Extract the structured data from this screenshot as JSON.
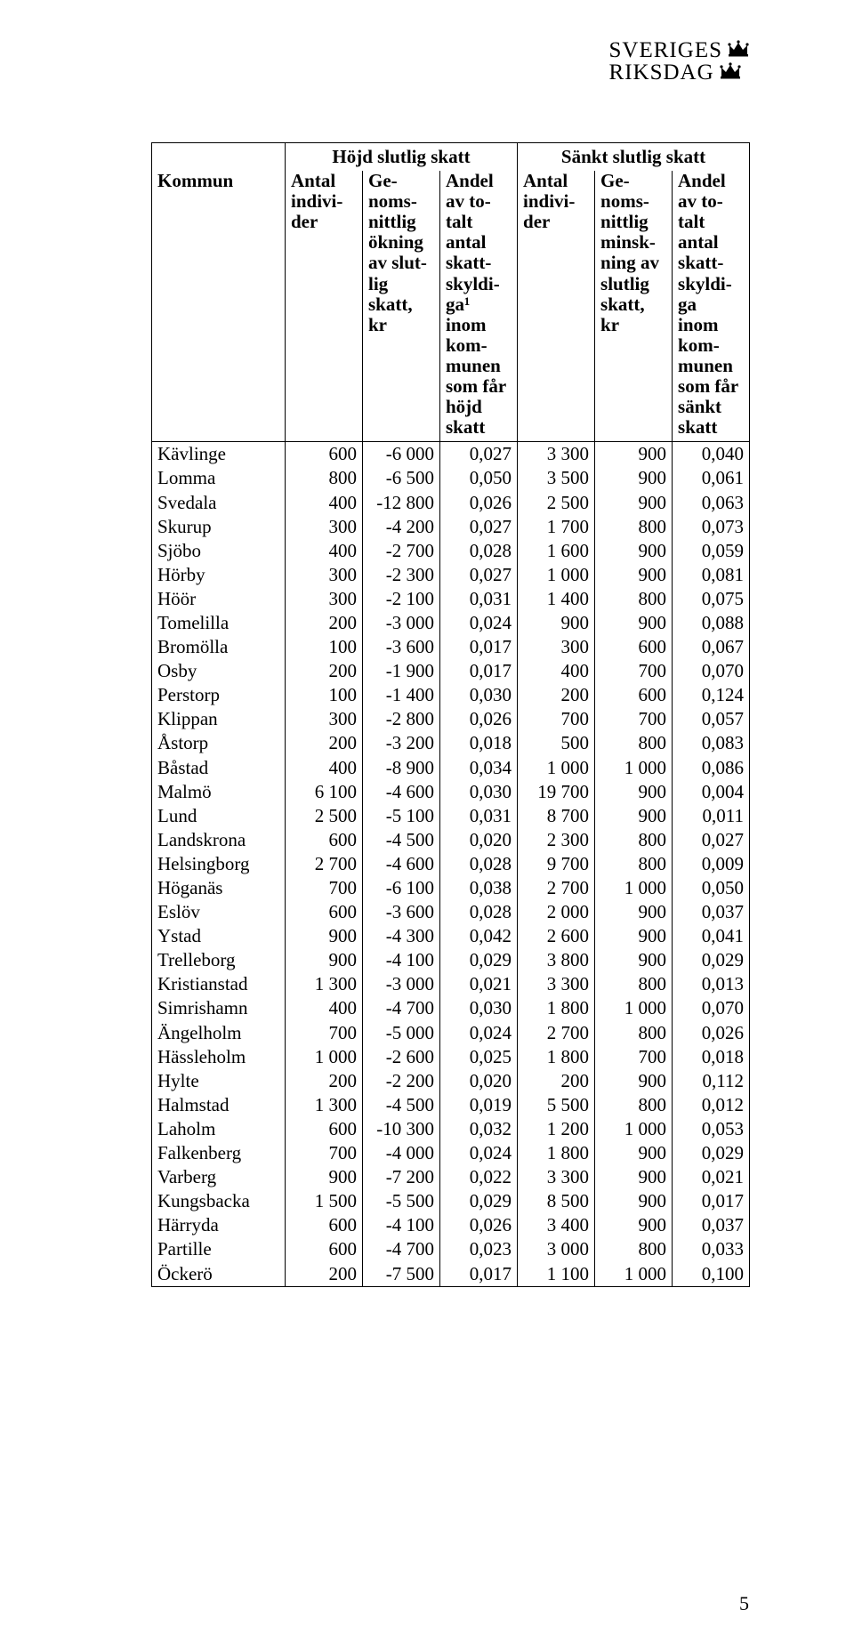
{
  "logo": {
    "line1": "SVERIGES",
    "line2": "RIKSDAG"
  },
  "page_number": "5",
  "table": {
    "group_headers": {
      "left_blank": "",
      "raised": "Höjd slutlig skatt",
      "lowered": "Sänkt slutlig skatt"
    },
    "col_headers": {
      "kommun": "Kommun",
      "hi_antal": "Antal\nindivi-\nder",
      "hi_okning": "Ge-\nnoms-\nnittlig\nökning\nav slut-\nlig\nskatt,\nkr",
      "hi_andel": "Andel\nav to-\ntalt\nantal\nskatt-\nskyldi-\nga¹\ninom\nkom-\nmunen\nsom får\nhöjd\nskatt",
      "lo_antal": "Antal\nindivi-\nder",
      "lo_minsk": "Ge-\nnoms-\nnittlig\nminsk-\nning av\nslutlig\nskatt,\nkr",
      "lo_andel": "Andel\nav to-\ntalt\nantal\nskatt-\nskyldi-\nga\ninom\nkom-\nmunen\nsom får\nsänkt\nskatt"
    },
    "rows": [
      {
        "k": "Kävlinge",
        "a": "600",
        "b": "-6 000",
        "c": "0,027",
        "d": "3 300",
        "e": "900",
        "f": "0,040"
      },
      {
        "k": "Lomma",
        "a": "800",
        "b": "-6 500",
        "c": "0,050",
        "d": "3 500",
        "e": "900",
        "f": "0,061"
      },
      {
        "k": "Svedala",
        "a": "400",
        "b": "-12 800",
        "c": "0,026",
        "d": "2 500",
        "e": "900",
        "f": "0,063"
      },
      {
        "k": "Skurup",
        "a": "300",
        "b": "-4 200",
        "c": "0,027",
        "d": "1 700",
        "e": "800",
        "f": "0,073"
      },
      {
        "k": "Sjöbo",
        "a": "400",
        "b": "-2 700",
        "c": "0,028",
        "d": "1 600",
        "e": "900",
        "f": "0,059"
      },
      {
        "k": "Hörby",
        "a": "300",
        "b": "-2 300",
        "c": "0,027",
        "d": "1 000",
        "e": "900",
        "f": "0,081"
      },
      {
        "k": "Höör",
        "a": "300",
        "b": "-2 100",
        "c": "0,031",
        "d": "1 400",
        "e": "800",
        "f": "0,075"
      },
      {
        "k": "Tomelilla",
        "a": "200",
        "b": "-3 000",
        "c": "0,024",
        "d": "900",
        "e": "900",
        "f": "0,088"
      },
      {
        "k": "Bromölla",
        "a": "100",
        "b": "-3 600",
        "c": "0,017",
        "d": "300",
        "e": "600",
        "f": "0,067"
      },
      {
        "k": "Osby",
        "a": "200",
        "b": "-1 900",
        "c": "0,017",
        "d": "400",
        "e": "700",
        "f": "0,070"
      },
      {
        "k": "Perstorp",
        "a": "100",
        "b": "-1 400",
        "c": "0,030",
        "d": "200",
        "e": "600",
        "f": "0,124"
      },
      {
        "k": "Klippan",
        "a": "300",
        "b": "-2 800",
        "c": "0,026",
        "d": "700",
        "e": "700",
        "f": "0,057"
      },
      {
        "k": "Åstorp",
        "a": "200",
        "b": "-3 200",
        "c": "0,018",
        "d": "500",
        "e": "800",
        "f": "0,083"
      },
      {
        "k": "Båstad",
        "a": "400",
        "b": "-8 900",
        "c": "0,034",
        "d": "1 000",
        "e": "1 000",
        "f": "0,086"
      },
      {
        "k": "Malmö",
        "a": "6 100",
        "b": "-4 600",
        "c": "0,030",
        "d": "19 700",
        "e": "900",
        "f": "0,004"
      },
      {
        "k": "Lund",
        "a": "2 500",
        "b": "-5 100",
        "c": "0,031",
        "d": "8 700",
        "e": "900",
        "f": "0,011"
      },
      {
        "k": "Landskrona",
        "a": "600",
        "b": "-4 500",
        "c": "0,020",
        "d": "2 300",
        "e": "800",
        "f": "0,027"
      },
      {
        "k": "Helsingborg",
        "a": "2 700",
        "b": "-4 600",
        "c": "0,028",
        "d": "9 700",
        "e": "800",
        "f": "0,009"
      },
      {
        "k": "Höganäs",
        "a": "700",
        "b": "-6 100",
        "c": "0,038",
        "d": "2 700",
        "e": "1 000",
        "f": "0,050"
      },
      {
        "k": "Eslöv",
        "a": "600",
        "b": "-3 600",
        "c": "0,028",
        "d": "2 000",
        "e": "900",
        "f": "0,037"
      },
      {
        "k": "Ystad",
        "a": "900",
        "b": "-4 300",
        "c": "0,042",
        "d": "2 600",
        "e": "900",
        "f": "0,041"
      },
      {
        "k": "Trelleborg",
        "a": "900",
        "b": "-4 100",
        "c": "0,029",
        "d": "3 800",
        "e": "900",
        "f": "0,029"
      },
      {
        "k": "Kristianstad",
        "a": "1 300",
        "b": "-3 000",
        "c": "0,021",
        "d": "3 300",
        "e": "800",
        "f": "0,013"
      },
      {
        "k": "Simrishamn",
        "a": "400",
        "b": "-4 700",
        "c": "0,030",
        "d": "1 800",
        "e": "1 000",
        "f": "0,070"
      },
      {
        "k": "Ängelholm",
        "a": "700",
        "b": "-5 000",
        "c": "0,024",
        "d": "2 700",
        "e": "800",
        "f": "0,026"
      },
      {
        "k": "Hässleholm",
        "a": "1 000",
        "b": "-2 600",
        "c": "0,025",
        "d": "1 800",
        "e": "700",
        "f": "0,018"
      },
      {
        "k": "Hylte",
        "a": "200",
        "b": "-2 200",
        "c": "0,020",
        "d": "200",
        "e": "900",
        "f": "0,112"
      },
      {
        "k": "Halmstad",
        "a": "1 300",
        "b": "-4 500",
        "c": "0,019",
        "d": "5 500",
        "e": "800",
        "f": "0,012"
      },
      {
        "k": "Laholm",
        "a": "600",
        "b": "-10 300",
        "c": "0,032",
        "d": "1 200",
        "e": "1 000",
        "f": "0,053"
      },
      {
        "k": "Falkenberg",
        "a": "700",
        "b": "-4 000",
        "c": "0,024",
        "d": "1 800",
        "e": "900",
        "f": "0,029"
      },
      {
        "k": "Varberg",
        "a": "900",
        "b": "-7 200",
        "c": "0,022",
        "d": "3 300",
        "e": "900",
        "f": "0,021"
      },
      {
        "k": "Kungsbacka",
        "a": "1 500",
        "b": "-5 500",
        "c": "0,029",
        "d": "8 500",
        "e": "900",
        "f": "0,017"
      },
      {
        "k": "Härryda",
        "a": "600",
        "b": "-4 100",
        "c": "0,026",
        "d": "3 400",
        "e": "900",
        "f": "0,037"
      },
      {
        "k": "Partille",
        "a": "600",
        "b": "-4 700",
        "c": "0,023",
        "d": "3 000",
        "e": "800",
        "f": "0,033"
      },
      {
        "k": "Öckerö",
        "a": "200",
        "b": "-7 500",
        "c": "0,017",
        "d": "1 100",
        "e": "1 000",
        "f": "0,100"
      }
    ]
  }
}
